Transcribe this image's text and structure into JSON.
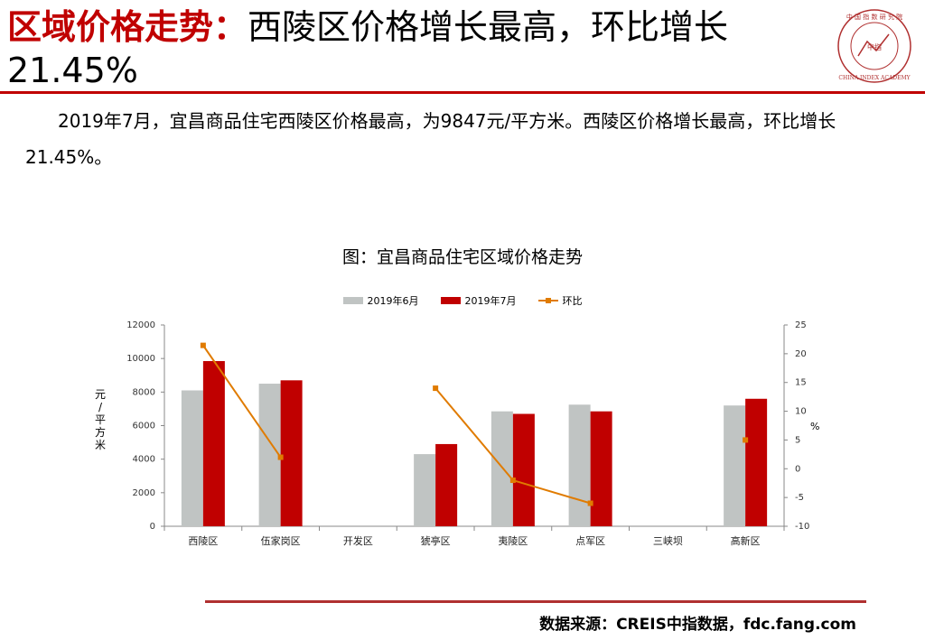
{
  "header": {
    "title_red": "区域价格走势：",
    "title_black": "西陵区价格增长最高，环比增长21.45%"
  },
  "logo": {
    "outer_text": "中 国 指 数 研 究 院",
    "english_text": "CHINA INDEX ACADEMY",
    "center_text": "中指"
  },
  "description": "2019年7月，宜昌商品住宅西陵区价格最高，为9847元/平方米。西陵区价格增长最高，环比增长21.45%。",
  "chart_data": {
    "type": "bar",
    "title": "图：宜昌商品住宅区域价格走势",
    "categories": [
      "西陵区",
      "伍家岗区",
      "开发区",
      "猇亭区",
      "夷陵区",
      "点军区",
      "三峡坝",
      "高新区"
    ],
    "series": [
      {
        "name": "2019年6月",
        "type": "bar",
        "color": "#c0c4c3",
        "values": [
          8100,
          8500,
          null,
          4300,
          6850,
          7250,
          null,
          7200
        ]
      },
      {
        "name": "2019年7月",
        "type": "bar",
        "color": "#c00000",
        "values": [
          9847,
          8700,
          null,
          4900,
          6700,
          6850,
          null,
          7600
        ]
      },
      {
        "name": "环比",
        "type": "line",
        "axis": "right",
        "color": "#e07b00",
        "values": [
          21.45,
          2,
          null,
          14,
          -2,
          -6,
          null,
          5
        ]
      }
    ],
    "ylabel": "元/平方米",
    "y2label": "%",
    "ylim": [
      0,
      12000
    ],
    "yticks": [
      0,
      2000,
      4000,
      6000,
      8000,
      10000,
      12000
    ],
    "y2lim": [
      -10,
      25
    ],
    "y2ticks": [
      -10,
      -5,
      0,
      5,
      10,
      15,
      20,
      25
    ],
    "legend_position": "top"
  },
  "footer": {
    "source": "数据来源：CREIS中指数据，fdc.fang.com"
  }
}
